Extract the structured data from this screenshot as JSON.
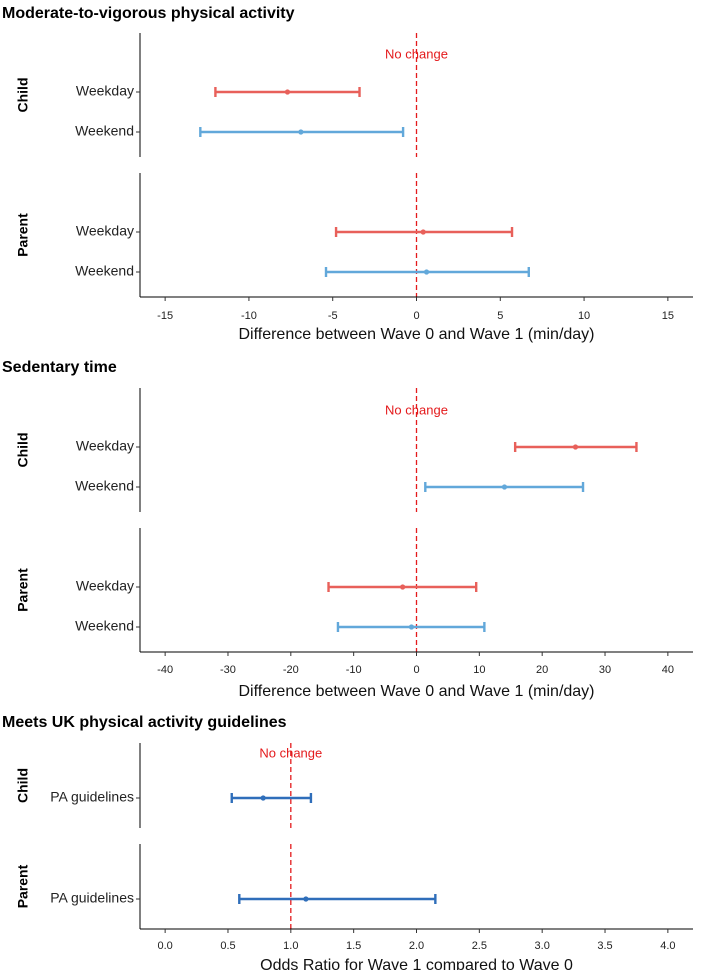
{
  "colors": {
    "weekday": "#e8605a",
    "weekend": "#62a8da",
    "guidelines": "#2f6eba",
    "no_change": "#e41a1c"
  },
  "chart_data": [
    {
      "type": "forest",
      "title": "Moderate-to-vigorous physical activity",
      "xlabel": "Difference between Wave 0 and Wave 1 (min/day)",
      "xlim": [
        -16.5,
        16.5
      ],
      "xticks": [
        -15,
        -10,
        -5,
        0,
        5,
        10,
        15
      ],
      "tick_labels": [
        "-15",
        "-10",
        "-5",
        "0",
        "5",
        "10",
        "15"
      ],
      "reference": 0,
      "reference_label": "No change",
      "facets": [
        {
          "label": "Child",
          "rows": [
            {
              "label": "Weekday",
              "estimate": -7.7,
              "low": -12.0,
              "high": -3.4,
              "color": "weekday"
            },
            {
              "label": "Weekend",
              "estimate": -6.9,
              "low": -12.9,
              "high": -0.8,
              "color": "weekend"
            }
          ]
        },
        {
          "label": "Parent",
          "rows": [
            {
              "label": "Weekday",
              "estimate": 0.4,
              "low": -4.8,
              "high": 5.7,
              "color": "weekday"
            },
            {
              "label": "Weekend",
              "estimate": 0.6,
              "low": -5.4,
              "high": 6.7,
              "color": "weekend"
            }
          ]
        }
      ]
    },
    {
      "type": "forest",
      "title": "Sedentary time",
      "xlabel": "Difference between Wave 0 and Wave 1 (min/day)",
      "xlim": [
        -44,
        44
      ],
      "xticks": [
        -40,
        -30,
        -20,
        -10,
        0,
        10,
        20,
        30,
        40
      ],
      "tick_labels": [
        "-40",
        "-30",
        "-20",
        "-10",
        "0",
        "10",
        "20",
        "30",
        "40"
      ],
      "reference": 0,
      "reference_label": "No change",
      "facets": [
        {
          "label": "Child",
          "rows": [
            {
              "label": "Weekday",
              "estimate": 25.3,
              "low": 15.7,
              "high": 35.0,
              "color": "weekday"
            },
            {
              "label": "Weekend",
              "estimate": 14.0,
              "low": 1.4,
              "high": 26.5,
              "color": "weekend"
            }
          ]
        },
        {
          "label": "Parent",
          "rows": [
            {
              "label": "Weekday",
              "estimate": -2.2,
              "low": -14.0,
              "high": 9.5,
              "color": "weekday"
            },
            {
              "label": "Weekend",
              "estimate": -0.8,
              "low": -12.5,
              "high": 10.8,
              "color": "weekend"
            }
          ]
        }
      ]
    },
    {
      "type": "forest",
      "title": "Meets UK physical activity guidelines",
      "xlabel": "Odds Ratio for Wave 1 compared to Wave 0",
      "xlim": [
        -0.2,
        4.2
      ],
      "xticks": [
        0,
        0.5,
        1,
        1.5,
        2,
        2.5,
        3,
        3.5,
        4
      ],
      "tick_labels": [
        "0.0",
        "0.5",
        "1.0",
        "1.5",
        "2.0",
        "2.5",
        "3.0",
        "3.5",
        "4.0"
      ],
      "reference": 1,
      "reference_label": "No change",
      "facets": [
        {
          "label": "Child",
          "rows": [
            {
              "label": "PA guidelines",
              "estimate": 0.78,
              "low": 0.53,
              "high": 1.16,
              "color": "guidelines"
            }
          ]
        },
        {
          "label": "Parent",
          "rows": [
            {
              "label": "PA guidelines",
              "estimate": 1.12,
              "low": 0.59,
              "high": 2.15,
              "color": "guidelines"
            }
          ]
        }
      ]
    }
  ]
}
